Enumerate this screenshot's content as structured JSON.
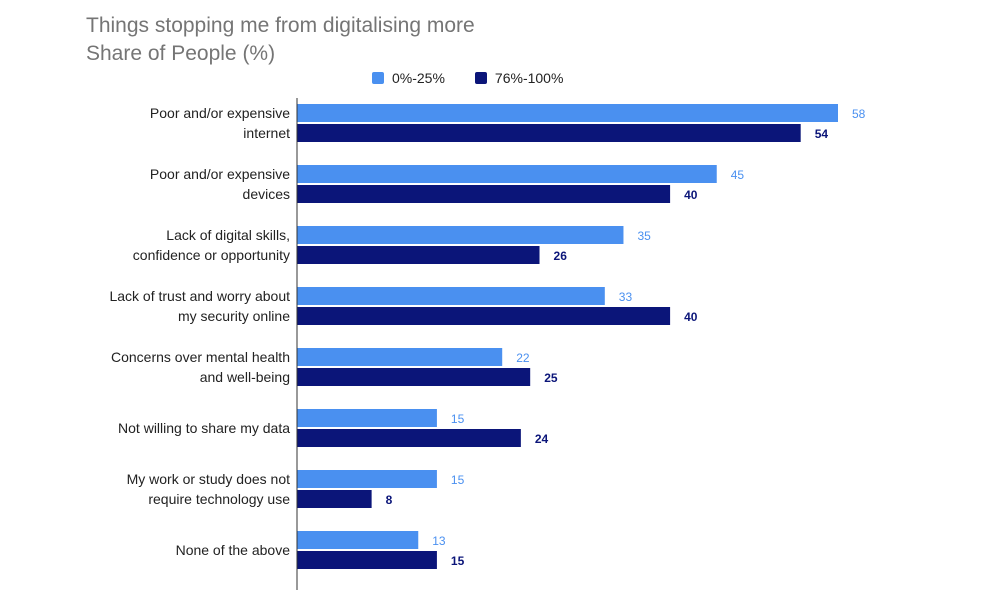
{
  "colors": {
    "series1": "#4a90f0",
    "series2": "#0b1579",
    "axis": "#333333",
    "title": "#757575"
  },
  "chart_data": {
    "type": "bar",
    "orientation": "horizontal",
    "title": "Things stopping me from digitalising more",
    "subtitle": "Share of People (%)",
    "xlabel": "",
    "ylabel": "",
    "legend_position": "top",
    "grid": false,
    "xlim": [
      0,
      60
    ],
    "categories": [
      [
        "Poor and/or expensive",
        "internet"
      ],
      [
        "Poor and/or expensive",
        "devices"
      ],
      [
        "Lack of digital skills,",
        "confidence or opportunity"
      ],
      [
        "Lack of trust and worry about",
        "my security online"
      ],
      [
        "Concerns over mental health",
        "and well-being"
      ],
      [
        "Not willing to share my data"
      ],
      [
        "My work or study does not",
        "require technology use"
      ],
      [
        "None of the above"
      ]
    ],
    "series": [
      {
        "name": "0%-25%",
        "values": [
          58,
          45,
          35,
          33,
          22,
          15,
          15,
          13
        ]
      },
      {
        "name": "76%-100%",
        "values": [
          54,
          40,
          26,
          40,
          25,
          24,
          8,
          15
        ]
      }
    ]
  }
}
